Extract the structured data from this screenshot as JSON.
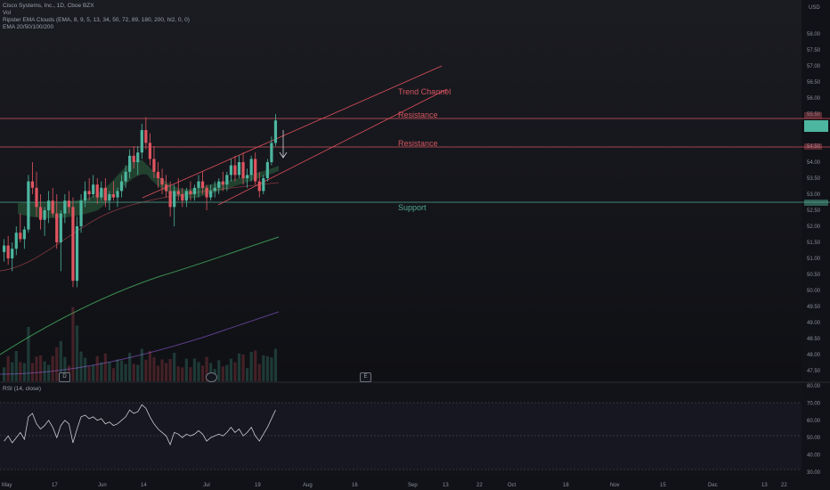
{
  "legend": {
    "symbol": "Cisco Systems, Inc., 1D, Cboe BZX",
    "vol": "Vol",
    "ema_clouds": "Ripster EMA Clouds (EMA, 8, 9, 5, 13, 34, 50, 72, 89, 180, 200, hl2, 0, 0)",
    "ema_set": "EMA 20/50/100/200"
  },
  "rsi_label": "RSI (14, close)",
  "currency": "USD",
  "price_axis": [
    "58.00",
    "57.50",
    "57.00",
    "56.50",
    "56.00",
    "55.50",
    "55.00",
    "54.50",
    "54.00",
    "53.50",
    "53.00",
    "52.50",
    "52.00",
    "51.50",
    "51.00",
    "50.50",
    "50.00",
    "49.50",
    "49.00",
    "48.50",
    "48.00",
    "47.50"
  ],
  "rsi_axis": [
    "80.00",
    "70.00",
    "60.00",
    "50.00",
    "40.00",
    "30.00"
  ],
  "time_axis": [
    "May",
    "17",
    "Jun",
    "14",
    "Jul",
    "19",
    "Aug",
    "16",
    "Sep",
    "13",
    "22",
    "Oct",
    "18",
    "Nov",
    "15",
    "Dec",
    "13",
    "22"
  ],
  "annotations": {
    "trend_channel": "Trend Channel",
    "resistance_1": "Resistance",
    "resistance_2": "Resistance",
    "support": "Support"
  },
  "markers": [
    "D",
    "E"
  ],
  "colors": {
    "background": "#111217",
    "bull": "#4db6a0",
    "bear": "#e05560",
    "resistance": "#d45560",
    "support": "#4fa892",
    "trend": "#e0505d",
    "rsi": "#c9cbd2",
    "rsi_band": "#7f62b5",
    "ema_green": "#3a8f52",
    "ema_purple": "#5d3d8a"
  },
  "chart_data": {
    "type": "candlestick",
    "title": "Cisco Systems, Inc., 1D, Cboe BZX",
    "ylim": [
      47.25,
      58.75
    ],
    "resistance_levels": [
      55.4,
      54.5
    ],
    "support_level": 52.85,
    "candles": [
      {
        "o": 51.2,
        "h": 51.6,
        "l": 50.9,
        "c": 51.4
      },
      {
        "o": 51.4,
        "h": 51.7,
        "l": 50.8,
        "c": 51.0
      },
      {
        "o": 51.0,
        "h": 51.5,
        "l": 50.6,
        "c": 51.3
      },
      {
        "o": 51.3,
        "h": 52.0,
        "l": 51.1,
        "c": 51.8
      },
      {
        "o": 51.8,
        "h": 52.4,
        "l": 51.5,
        "c": 51.6
      },
      {
        "o": 51.6,
        "h": 52.0,
        "l": 51.3,
        "c": 51.9
      },
      {
        "o": 51.9,
        "h": 53.6,
        "l": 51.8,
        "c": 53.4
      },
      {
        "o": 53.4,
        "h": 54.0,
        "l": 53.0,
        "c": 53.2
      },
      {
        "o": 53.2,
        "h": 53.7,
        "l": 52.3,
        "c": 52.6
      },
      {
        "o": 52.6,
        "h": 53.0,
        "l": 51.9,
        "c": 52.2
      },
      {
        "o": 52.2,
        "h": 52.6,
        "l": 51.7,
        "c": 52.5
      },
      {
        "o": 52.5,
        "h": 53.1,
        "l": 52.1,
        "c": 52.8
      },
      {
        "o": 52.8,
        "h": 53.2,
        "l": 52.3,
        "c": 52.4
      },
      {
        "o": 52.4,
        "h": 53.0,
        "l": 51.3,
        "c": 51.5
      },
      {
        "o": 51.5,
        "h": 52.5,
        "l": 50.6,
        "c": 52.4
      },
      {
        "o": 52.4,
        "h": 53.0,
        "l": 52.1,
        "c": 52.8
      },
      {
        "o": 52.8,
        "h": 53.1,
        "l": 52.4,
        "c": 52.6
      },
      {
        "o": 52.6,
        "h": 52.9,
        "l": 50.1,
        "c": 50.3
      },
      {
        "o": 50.3,
        "h": 52.3,
        "l": 50.1,
        "c": 52.0
      },
      {
        "o": 52.0,
        "h": 53.0,
        "l": 51.8,
        "c": 52.8
      },
      {
        "o": 52.8,
        "h": 53.4,
        "l": 52.6,
        "c": 53.1
      },
      {
        "o": 53.1,
        "h": 53.5,
        "l": 52.8,
        "c": 53.0
      },
      {
        "o": 53.0,
        "h": 53.6,
        "l": 52.9,
        "c": 53.3
      },
      {
        "o": 53.3,
        "h": 53.5,
        "l": 52.7,
        "c": 52.9
      },
      {
        "o": 52.9,
        "h": 53.4,
        "l": 52.8,
        "c": 53.2
      },
      {
        "o": 53.2,
        "h": 53.5,
        "l": 52.6,
        "c": 52.8
      },
      {
        "o": 52.8,
        "h": 53.1,
        "l": 52.5,
        "c": 53.0
      },
      {
        "o": 53.0,
        "h": 53.4,
        "l": 52.8,
        "c": 52.9
      },
      {
        "o": 52.9,
        "h": 53.2,
        "l": 52.6,
        "c": 53.1
      },
      {
        "o": 53.1,
        "h": 53.6,
        "l": 52.9,
        "c": 53.4
      },
      {
        "o": 53.4,
        "h": 53.9,
        "l": 53.2,
        "c": 53.7
      },
      {
        "o": 53.7,
        "h": 54.4,
        "l": 53.5,
        "c": 54.2
      },
      {
        "o": 54.2,
        "h": 54.5,
        "l": 53.8,
        "c": 54.0
      },
      {
        "o": 54.0,
        "h": 54.5,
        "l": 53.6,
        "c": 54.3
      },
      {
        "o": 54.3,
        "h": 55.2,
        "l": 54.1,
        "c": 55.0
      },
      {
        "o": 55.0,
        "h": 55.4,
        "l": 54.4,
        "c": 54.6
      },
      {
        "o": 54.6,
        "h": 54.9,
        "l": 53.9,
        "c": 54.1
      },
      {
        "o": 54.1,
        "h": 54.5,
        "l": 53.5,
        "c": 53.7
      },
      {
        "o": 53.7,
        "h": 54.0,
        "l": 53.2,
        "c": 53.5
      },
      {
        "o": 53.5,
        "h": 53.8,
        "l": 53.0,
        "c": 53.3
      },
      {
        "o": 53.3,
        "h": 53.6,
        "l": 52.9,
        "c": 53.1
      },
      {
        "o": 53.1,
        "h": 53.4,
        "l": 52.3,
        "c": 52.6
      },
      {
        "o": 52.6,
        "h": 53.3,
        "l": 52.0,
        "c": 53.1
      },
      {
        "o": 53.1,
        "h": 53.5,
        "l": 52.8,
        "c": 53.0
      },
      {
        "o": 53.0,
        "h": 53.2,
        "l": 52.6,
        "c": 52.8
      },
      {
        "o": 52.8,
        "h": 53.2,
        "l": 52.6,
        "c": 53.1
      },
      {
        "o": 53.1,
        "h": 53.4,
        "l": 52.8,
        "c": 53.0
      },
      {
        "o": 53.0,
        "h": 53.3,
        "l": 52.8,
        "c": 53.2
      },
      {
        "o": 53.2,
        "h": 53.6,
        "l": 52.9,
        "c": 53.4
      },
      {
        "o": 53.4,
        "h": 53.7,
        "l": 53.0,
        "c": 53.2
      },
      {
        "o": 53.2,
        "h": 53.3,
        "l": 52.5,
        "c": 52.9
      },
      {
        "o": 52.9,
        "h": 53.3,
        "l": 52.8,
        "c": 53.1
      },
      {
        "o": 53.1,
        "h": 53.4,
        "l": 52.9,
        "c": 53.2
      },
      {
        "o": 53.2,
        "h": 53.5,
        "l": 53.0,
        "c": 53.4
      },
      {
        "o": 53.4,
        "h": 53.7,
        "l": 53.1,
        "c": 53.3
      },
      {
        "o": 53.3,
        "h": 53.7,
        "l": 53.1,
        "c": 53.6
      },
      {
        "o": 53.6,
        "h": 54.1,
        "l": 53.4,
        "c": 53.9
      },
      {
        "o": 53.9,
        "h": 54.2,
        "l": 53.4,
        "c": 53.6
      },
      {
        "o": 53.6,
        "h": 54.2,
        "l": 53.5,
        "c": 54.0
      },
      {
        "o": 54.0,
        "h": 54.3,
        "l": 53.3,
        "c": 53.5
      },
      {
        "o": 53.5,
        "h": 53.8,
        "l": 53.2,
        "c": 53.6
      },
      {
        "o": 53.6,
        "h": 54.2,
        "l": 53.4,
        "c": 54.1
      },
      {
        "o": 54.1,
        "h": 54.3,
        "l": 53.3,
        "c": 53.4
      },
      {
        "o": 53.4,
        "h": 53.7,
        "l": 52.9,
        "c": 53.1
      },
      {
        "o": 53.1,
        "h": 53.6,
        "l": 53.0,
        "c": 53.5
      },
      {
        "o": 53.5,
        "h": 54.1,
        "l": 53.4,
        "c": 54.0
      },
      {
        "o": 54.0,
        "h": 54.8,
        "l": 53.9,
        "c": 54.6
      },
      {
        "o": 54.6,
        "h": 55.5,
        "l": 54.5,
        "c": 55.3
      }
    ],
    "rsi": [
      48,
      51,
      47,
      50,
      53,
      49,
      62,
      64,
      58,
      55,
      57,
      60,
      56,
      50,
      57,
      60,
      58,
      47,
      55,
      62,
      63,
      61,
      62,
      60,
      61,
      58,
      59,
      57,
      58,
      60,
      62,
      66,
      64,
      65,
      69,
      67,
      62,
      58,
      55,
      53,
      51,
      46,
      53,
      52,
      50,
      52,
      51,
      52,
      54,
      52,
      48,
      50,
      51,
      52,
      51,
      53,
      56,
      53,
      55,
      51,
      53,
      56,
      51,
      48,
      52,
      56,
      61,
      66
    ]
  }
}
